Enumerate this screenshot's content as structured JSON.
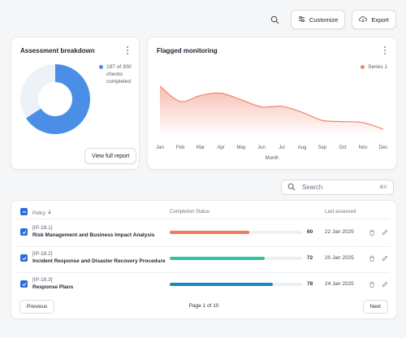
{
  "toolbar": {
    "customize_label": "Customize",
    "export_label": "Export"
  },
  "assessment_card": {
    "title": "Assessment breakdown",
    "legend_text_line1": "197 of 300",
    "legend_text_line2": "checks",
    "legend_text_line3": "completed",
    "completed": 197,
    "total": 300,
    "completed_color": "#4a8ee6",
    "remaining_color": "#edf2f8",
    "button_label": "View full report"
  },
  "monitoring_card": {
    "title": "Flagged monitoring",
    "legend_label": "Series 1"
  },
  "chart_data": {
    "type": "area",
    "title": "Flagged monitoring",
    "xlabel": "Month",
    "ylabel": "",
    "categories": [
      "Jan",
      "Feb",
      "Mar",
      "Apr",
      "May",
      "Jun",
      "Jul",
      "Aug",
      "Sep",
      "Oct",
      "Nov",
      "Dec"
    ],
    "series": [
      {
        "name": "Series 1",
        "values": [
          85,
          57,
          68,
          72,
          60,
          47,
          48,
          37,
          22,
          20,
          18,
          6
        ],
        "color": "#f0866e"
      }
    ],
    "ylim": [
      0,
      100
    ],
    "grid": false,
    "legend": "top-right"
  },
  "search": {
    "placeholder": "Search",
    "shortcut": "⌘K"
  },
  "table": {
    "headers": {
      "policy": "Policy",
      "status": "Completion Status",
      "assessed": "Last assessed"
    },
    "rows": [
      {
        "id": "[IP-18.1]",
        "name": "Risk Management and Business Impact Analysis",
        "percent": 60,
        "label": "60",
        "date": "22 Jan 2025",
        "color": "#f07a5a"
      },
      {
        "id": "[IP-18.2]",
        "name": "Incident Response and Disaster Recovery Procedure",
        "percent": 72,
        "label": "72",
        "date": "20 Jan 2025",
        "color": "#2fc3a0"
      },
      {
        "id": "[IP-18.3]",
        "name": "Response Plans",
        "percent": 78,
        "label": "78",
        "date": "24 Jan 2025",
        "color": "#1f86b8"
      }
    ]
  },
  "pagination": {
    "previous_label": "Previous",
    "page_text": "Page 1 of 10",
    "next_label": "Next"
  }
}
